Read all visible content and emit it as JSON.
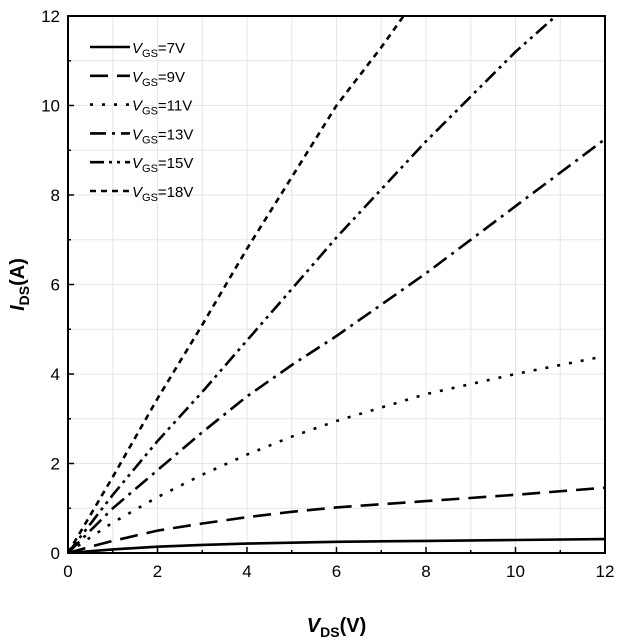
{
  "chart_data": {
    "type": "line",
    "xlabel": {
      "main": "V",
      "sub": "DS",
      "suffix": "(V)"
    },
    "ylabel": {
      "main": "I",
      "sub": "DS",
      "suffix": "(A)"
    },
    "xlim": [
      0,
      12
    ],
    "ylim": [
      0,
      12
    ],
    "x_ticks": [
      0,
      2,
      4,
      6,
      8,
      10,
      12
    ],
    "y_ticks": [
      0,
      2,
      4,
      6,
      8,
      10,
      12
    ],
    "grid": true,
    "legend": "top-left",
    "series": [
      {
        "name": {
          "main": "V",
          "sub": "GS",
          "suffix": "=7V"
        },
        "dash": "solid",
        "x": [
          0,
          0.5,
          1,
          2,
          3,
          4,
          5,
          6,
          8,
          10,
          12
        ],
        "y": [
          0,
          0.04,
          0.08,
          0.14,
          0.18,
          0.21,
          0.23,
          0.25,
          0.27,
          0.29,
          0.31
        ]
      },
      {
        "name": {
          "main": "V",
          "sub": "GS",
          "suffix": "=9V"
        },
        "dash": "dash",
        "x": [
          0,
          0.5,
          1,
          2,
          3,
          4,
          5,
          6,
          8,
          10,
          12
        ],
        "y": [
          0,
          0.14,
          0.27,
          0.5,
          0.66,
          0.8,
          0.92,
          1.02,
          1.16,
          1.3,
          1.46
        ]
      },
      {
        "name": {
          "main": "V",
          "sub": "GS",
          "suffix": "=11V"
        },
        "dash": "dot",
        "x": [
          0,
          0.5,
          1,
          2,
          3,
          4,
          5,
          6,
          8,
          10,
          12
        ],
        "y": [
          0,
          0.35,
          0.68,
          1.25,
          1.75,
          2.2,
          2.6,
          2.95,
          3.55,
          4.0,
          4.4
        ]
      },
      {
        "name": {
          "main": "V",
          "sub": "GS",
          "suffix": "=13V"
        },
        "dash": "dashdot",
        "x": [
          0,
          0.5,
          1,
          2,
          3,
          4,
          5,
          6,
          8,
          10,
          12
        ],
        "y": [
          0,
          0.5,
          1.0,
          1.85,
          2.7,
          3.5,
          4.2,
          4.85,
          6.25,
          7.75,
          9.25
        ]
      },
      {
        "name": {
          "main": "V",
          "sub": "GS",
          "suffix": "=15V"
        },
        "dash": "dashdotdot",
        "x": [
          0,
          0.5,
          1,
          2,
          3,
          4,
          5,
          6,
          8,
          10,
          10.9
        ],
        "y": [
          0,
          0.65,
          1.3,
          2.5,
          3.6,
          4.75,
          5.9,
          7.05,
          9.2,
          11.2,
          12.0
        ]
      },
      {
        "name": {
          "main": "V",
          "sub": "GS",
          "suffix": "=18V"
        },
        "dash": "shortdash",
        "x": [
          0,
          0.5,
          1,
          2,
          3,
          4,
          5,
          6,
          7,
          7.5
        ],
        "y": [
          0,
          0.85,
          1.7,
          3.45,
          5.1,
          6.8,
          8.4,
          10.0,
          11.3,
          12.0
        ]
      }
    ]
  }
}
